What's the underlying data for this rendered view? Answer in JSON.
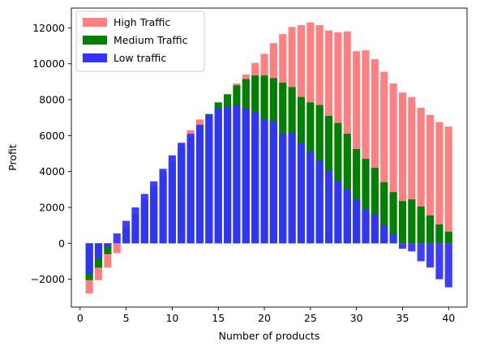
{
  "chart_data": {
    "type": "bar",
    "xlabel": "Number of products",
    "ylabel": "Profit",
    "xlim": [
      -0.95,
      42.0
    ],
    "ylim": [
      -3550,
      13100
    ],
    "xticks": [
      0,
      5,
      10,
      15,
      20,
      25,
      30,
      35,
      40
    ],
    "yticks": [
      -2000,
      0,
      2000,
      4000,
      6000,
      8000,
      10000,
      12000
    ],
    "grid": false,
    "legend_position": "top-left",
    "x": [
      1,
      2,
      3,
      4,
      5,
      6,
      7,
      8,
      9,
      10,
      11,
      12,
      13,
      14,
      15,
      16,
      17,
      18,
      19,
      20,
      21,
      22,
      23,
      24,
      25,
      26,
      27,
      28,
      29,
      30,
      31,
      32,
      33,
      34,
      35,
      36,
      37,
      38,
      39,
      40
    ],
    "series": [
      {
        "name": "High Traffic",
        "color": "#ff8080",
        "values": [
          -2800,
          -2050,
          -1350,
          -550,
          700,
          1300,
          2100,
          3000,
          3800,
          4700,
          5550,
          6300,
          6900,
          7200,
          7600,
          8300,
          8900,
          9400,
          10050,
          10550,
          11150,
          11650,
          12050,
          12150,
          12300,
          12150,
          11850,
          11750,
          11800,
          10700,
          10750,
          10250,
          9550,
          8900,
          8400,
          8150,
          7550,
          7150,
          6750,
          6500
        ]
      },
      {
        "name": "Medium Traffic",
        "color": "#008000",
        "values": [
          -2050,
          -1350,
          -600,
          0,
          850,
          1650,
          2450,
          3200,
          3950,
          4550,
          5300,
          5900,
          6550,
          7200,
          7850,
          8300,
          8800,
          9150,
          9350,
          9350,
          9200,
          8950,
          8700,
          8150,
          7850,
          7700,
          7100,
          6700,
          6100,
          5250,
          4700,
          4200,
          3400,
          2850,
          2350,
          2450,
          2050,
          1550,
          1050,
          650
        ]
      },
      {
        "name": "Low traffic",
        "color": "#3333ff",
        "values": [
          -1700,
          -850,
          -200,
          550,
          1250,
          2000,
          2750,
          3450,
          4150,
          4900,
          5600,
          6100,
          6600,
          7150,
          7500,
          7600,
          7700,
          7500,
          7300,
          6900,
          6800,
          6100,
          6150,
          5600,
          5100,
          4600,
          4050,
          3450,
          3000,
          2450,
          1900,
          1600,
          1000,
          500,
          -300,
          -450,
          -1000,
          -1350,
          -2000,
          -2450
        ]
      }
    ]
  }
}
